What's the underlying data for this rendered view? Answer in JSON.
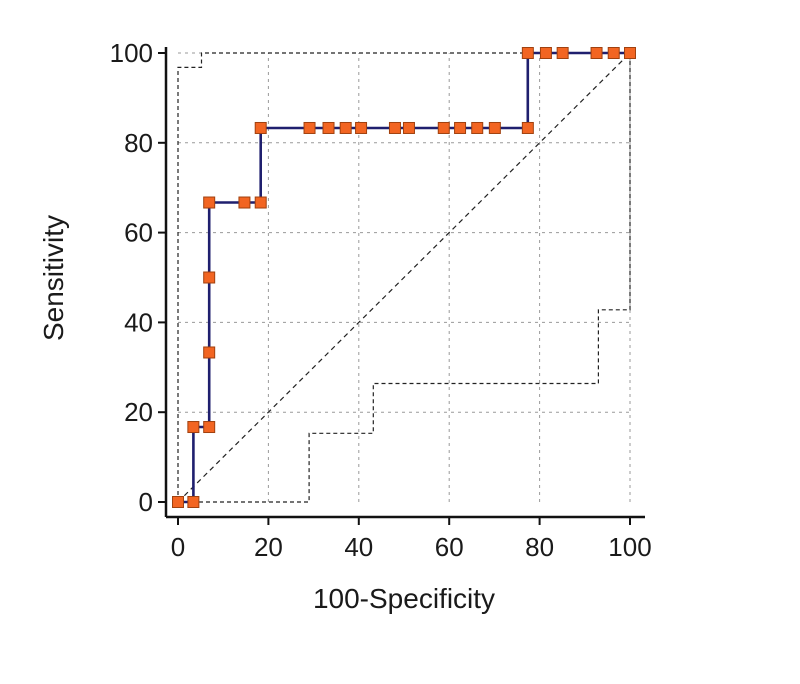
{
  "chart_data": {
    "type": "line",
    "title": "",
    "xlabel": "100-Specificity",
    "ylabel": "Sensitivity",
    "xlim": [
      0,
      100
    ],
    "ylim": [
      0,
      100
    ],
    "x_ticks": [
      0,
      20,
      40,
      60,
      80,
      100
    ],
    "y_ticks": [
      0,
      20,
      40,
      60,
      80,
      100
    ],
    "grid": true,
    "legend": "none",
    "colors": {
      "roc_line": "#1f1f6e",
      "marker_fill": "#f26522",
      "marker_stroke": "#a0410f",
      "reference": "#222222",
      "grid": "#9a9a9a",
      "axis": "#111111"
    },
    "series": [
      {
        "kind": "roc_curve",
        "points": [
          [
            0,
            0
          ],
          [
            3.4,
            0
          ],
          [
            3.4,
            16.7
          ],
          [
            6.9,
            16.7
          ],
          [
            6.9,
            33.3
          ],
          [
            6.9,
            50
          ],
          [
            6.9,
            66.7
          ],
          [
            14.7,
            66.7
          ],
          [
            18.3,
            66.7
          ],
          [
            18.3,
            83.3
          ],
          [
            29.1,
            83.3
          ],
          [
            33.3,
            83.3
          ],
          [
            37.1,
            83.3
          ],
          [
            40.5,
            83.3
          ],
          [
            48,
            83.3
          ],
          [
            51.1,
            83.3
          ],
          [
            58.8,
            83.3
          ],
          [
            62.4,
            83.3
          ],
          [
            66.2,
            83.3
          ],
          [
            70.1,
            83.3
          ],
          [
            77.4,
            83.3
          ],
          [
            77.4,
            100
          ],
          [
            81.4,
            100
          ],
          [
            85.1,
            100
          ],
          [
            92.6,
            100
          ],
          [
            96.4,
            100
          ],
          [
            100,
            100
          ]
        ],
        "markers": [
          [
            0,
            0
          ],
          [
            3.4,
            0
          ],
          [
            3.4,
            16.7
          ],
          [
            6.9,
            16.7
          ],
          [
            6.9,
            33.3
          ],
          [
            6.9,
            50
          ],
          [
            6.9,
            66.7
          ],
          [
            14.7,
            66.7
          ],
          [
            18.3,
            66.7
          ],
          [
            18.3,
            83.3
          ],
          [
            29.1,
            83.3
          ],
          [
            33.3,
            83.3
          ],
          [
            37.1,
            83.3
          ],
          [
            40.5,
            83.3
          ],
          [
            48,
            83.3
          ],
          [
            51.1,
            83.3
          ],
          [
            58.8,
            83.3
          ],
          [
            62.4,
            83.3
          ],
          [
            66.2,
            83.3
          ],
          [
            70.1,
            83.3
          ],
          [
            77.4,
            83.3
          ],
          [
            77.4,
            100
          ],
          [
            81.4,
            100
          ],
          [
            85.1,
            100
          ],
          [
            92.6,
            100
          ],
          [
            96.4,
            100
          ],
          [
            100,
            100
          ]
        ]
      },
      {
        "kind": "upper_confidence_bound",
        "points": [
          [
            0,
            0
          ],
          [
            0,
            96.8
          ],
          [
            5.2,
            96.8
          ],
          [
            5.2,
            100
          ],
          [
            100,
            100
          ]
        ]
      },
      {
        "kind": "lower_confidence_bound",
        "points": [
          [
            0,
            0
          ],
          [
            29,
            0
          ],
          [
            29,
            15.3
          ],
          [
            43.2,
            15.3
          ],
          [
            43.2,
            26.4
          ],
          [
            93,
            26.4
          ],
          [
            93,
            42.8
          ],
          [
            100,
            42.8
          ],
          [
            100,
            100
          ]
        ]
      },
      {
        "kind": "diagonal_reference",
        "points": [
          [
            0,
            0
          ],
          [
            100,
            100
          ]
        ]
      }
    ]
  }
}
